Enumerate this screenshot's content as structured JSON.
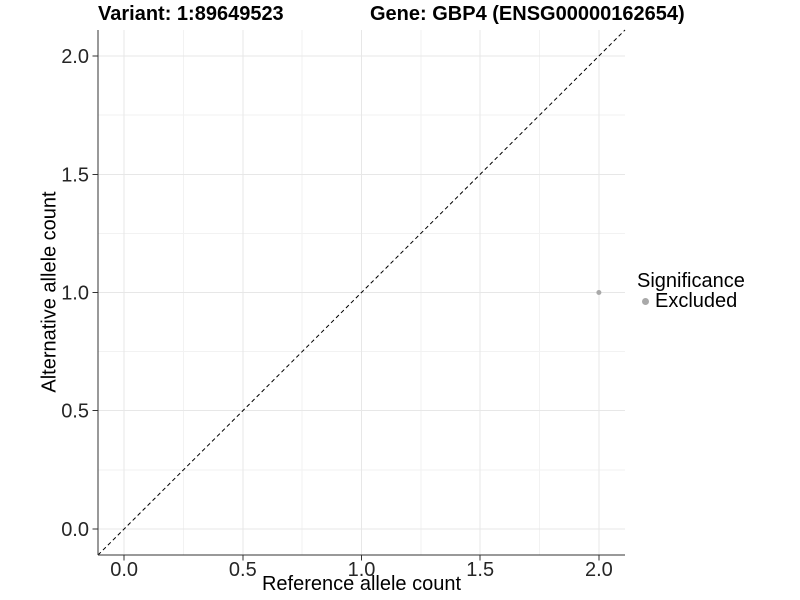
{
  "chart_data": {
    "type": "scatter",
    "title_left": "Variant: 1:89649523",
    "title_right": "Gene: GBP4 (ENSG00000162654)",
    "xlabel": "Reference allele count",
    "ylabel": "Alternative allele count",
    "xlim": [
      -0.11,
      2.11
    ],
    "ylim": [
      -0.11,
      2.11
    ],
    "x_ticks": [
      0.0,
      0.5,
      1.0,
      1.5,
      2.0
    ],
    "x_tick_labels": [
      "0.0",
      "0.5",
      "1.0",
      "1.5",
      "2.0"
    ],
    "y_ticks": [
      0.0,
      0.5,
      1.0,
      1.5,
      2.0
    ],
    "y_tick_labels": [
      "0.0",
      "0.5",
      "1.0",
      "1.5",
      "2.0"
    ],
    "x_minor_ticks": [
      0.25,
      0.75,
      1.25,
      1.75
    ],
    "y_minor_ticks": [
      0.25,
      0.75,
      1.25,
      1.75
    ],
    "grid": true,
    "reference_line": {
      "type": "identity",
      "style": "dashed",
      "color": "#000000"
    },
    "series": [
      {
        "name": "Excluded",
        "color": "#a9a9a9",
        "points": [
          {
            "x": 2.0,
            "y": 1.0
          }
        ]
      }
    ],
    "legend": {
      "position": "right",
      "title": "Significance",
      "items": [
        {
          "label": "Excluded",
          "color": "#a9a9a9"
        }
      ]
    },
    "colors": {
      "background": "#ffffff",
      "grid_major": "#e7e7e7",
      "grid_minor": "#f2f2f2",
      "axis_line": "#333333",
      "tick_mark": "#333333",
      "tick_label": "#262626"
    }
  }
}
